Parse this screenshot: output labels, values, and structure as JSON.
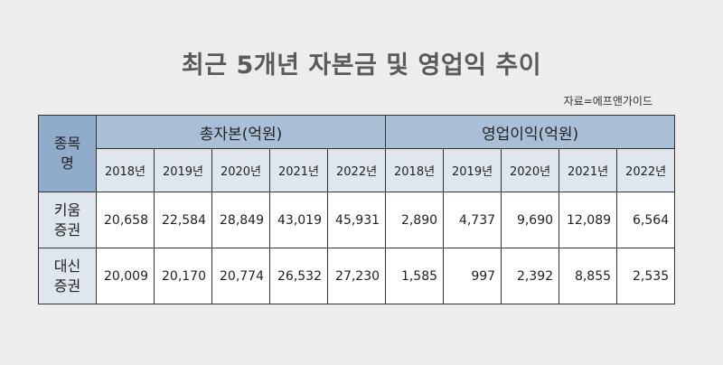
{
  "title": "최근 5개년 자본금 및 영업익 추이",
  "source": "자료=에프앤가이드",
  "table": {
    "stock_header": [
      "종목",
      "명"
    ],
    "group_capital": "총자본(억원)",
    "group_profit": "영업이익(억원)",
    "years_capital": [
      "2018년",
      "2019년",
      "2020년",
      "2021년",
      "2022년"
    ],
    "years_profit": [
      "2018년",
      "2019년",
      "2020년",
      "2021년",
      "2022년"
    ],
    "rows": [
      {
        "name": [
          "키움",
          "증권"
        ],
        "capital": [
          "20,658",
          "22,584",
          "28,849",
          "43,019",
          "45,931"
        ],
        "profit": [
          "2,890",
          "4,737",
          "9,690",
          "12,089",
          "6,564"
        ]
      },
      {
        "name": [
          "대신",
          "증권"
        ],
        "capital": [
          "20,009",
          "20,170",
          "20,774",
          "26,532",
          "27,230"
        ],
        "profit": [
          "1,585",
          "997",
          "2,392",
          "8,855",
          "2,535"
        ]
      }
    ]
  }
}
